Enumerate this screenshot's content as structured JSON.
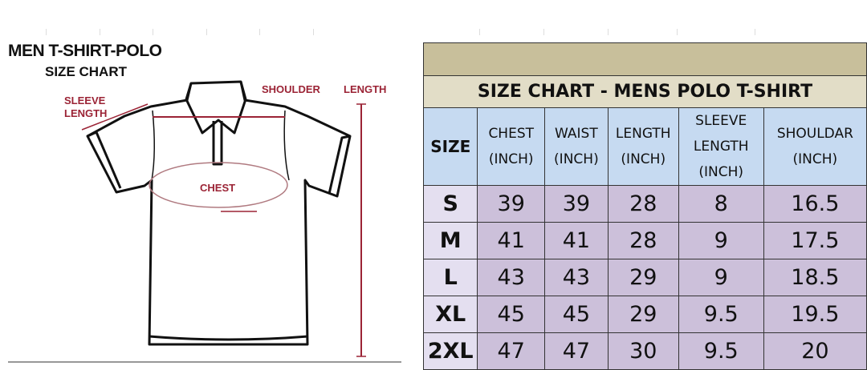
{
  "diagram": {
    "title": "MEN T-SHIRT-POLO",
    "subtitle": "SIZE CHART",
    "labels": {
      "sleeve": "SLEEVE",
      "sleeve2": "LENGTH",
      "shoulder": "SHOULDER",
      "length": "LENGTH",
      "chest": "CHEST"
    },
    "accent_color": "#9b2335"
  },
  "table": {
    "title": "SIZE CHART - MENS POLO T-SHIRT",
    "headers": [
      {
        "l1": "SIZE",
        "l2": "",
        "l3": ""
      },
      {
        "l1": "CHEST",
        "l2": "(INCH)",
        "l3": ""
      },
      {
        "l1": "WAIST",
        "l2": "(INCH)",
        "l3": ""
      },
      {
        "l1": "LENGTH",
        "l2": "(INCH)",
        "l3": ""
      },
      {
        "l1": "SLEEVE",
        "l2": "LENGTH",
        "l3": "(INCH)"
      },
      {
        "l1": "SHOULDAR",
        "l2": "(INCH)",
        "l3": ""
      }
    ],
    "rows": [
      [
        "S",
        "39",
        "39",
        "28",
        "8",
        "16.5"
      ],
      [
        "M",
        "41",
        "41",
        "28",
        "9",
        "17.5"
      ],
      [
        "L",
        "43",
        "43",
        "29",
        "9",
        "18.5"
      ],
      [
        "XL",
        "45",
        "45",
        "29",
        "9.5",
        "19.5"
      ],
      [
        "2XL",
        "47",
        "47",
        "30",
        "9.5",
        "20"
      ]
    ],
    "colors": {
      "band": "#c8bf9b",
      "title_band": "#e2ddc7",
      "header": "#c6daf1",
      "size_cell": "#e4dff0",
      "data_cell": "#ccc0da"
    }
  }
}
